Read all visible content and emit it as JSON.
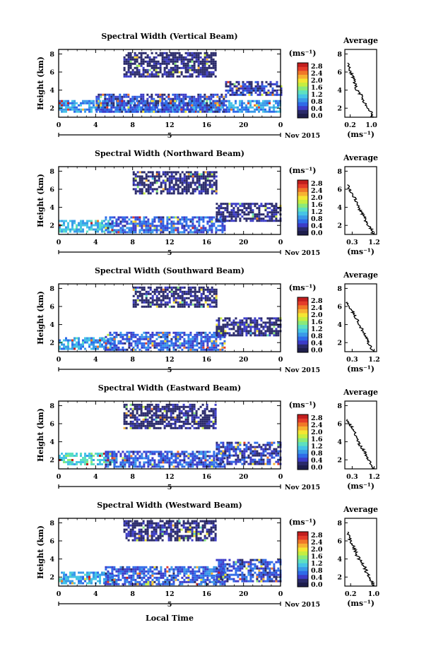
{
  "figure": {
    "common": {
      "ylabel": "Height (km)",
      "y_ticks": [
        "2",
        "4",
        "6",
        "8"
      ],
      "x_ticks": [
        "0",
        "4",
        "8",
        "12",
        "16",
        "20",
        "0"
      ],
      "date_tick": "5",
      "month_label": "Nov 2015",
      "xlabel": "Local Time",
      "colorbar_unit": "(ms⁻¹)",
      "colorbar_ticks": [
        "2.8",
        "2.4",
        "2.0",
        "1.6",
        "1.2",
        "0.8",
        "0.4",
        "0.0"
      ],
      "avg_title": "Average",
      "avg_unit": "(ms⁻¹)",
      "avg_y_ticks": [
        "2",
        "4",
        "6",
        "8"
      ]
    },
    "colors": {
      "colormap": [
        "#2a2a6a",
        "#3c3cc8",
        "#2e6ae8",
        "#3a9ae8",
        "#46c4e6",
        "#5ee0c0",
        "#8aea7a",
        "#c6ee40",
        "#f4e632",
        "#f6b232",
        "#f07828",
        "#e43c2a",
        "#c21e1e"
      ],
      "noise": "#1e1e4c"
    }
  },
  "chart_data": [
    {
      "type": "heatmap",
      "title": "Spectral Width (Vertical Beam)",
      "x_unit": "hours local time (5 Nov 2015)",
      "y_unit": "km",
      "xlim": [
        0,
        24
      ],
      "ylim": [
        1,
        8.5
      ],
      "colorbar": {
        "ticks": [
          0.0,
          0.4,
          0.8,
          1.2,
          1.6,
          2.0,
          2.4,
          2.8
        ],
        "unit": "ms-1"
      },
      "echo_regions": [
        {
          "x": [
            0,
            24
          ],
          "y": [
            1.5,
            2.9
          ],
          "mean_width": 0.8
        },
        {
          "x": [
            4,
            18
          ],
          "y": [
            1.5,
            3.6
          ],
          "mean_width": 0.4
        },
        {
          "x": [
            7,
            17
          ],
          "y": [
            5.5,
            8.2
          ],
          "mean_width": 0.05
        },
        {
          "x": [
            18,
            24
          ],
          "y": [
            3.5,
            5
          ],
          "mean_width": 0.3
        }
      ],
      "average_profile": {
        "title": "Average",
        "xlim": [
          0.0,
          1.2
        ],
        "x_ticks": [
          0.2,
          1.0
        ],
        "x_tick_labels": [
          "0.2",
          "1.0"
        ],
        "height": [
          1,
          1.5,
          2,
          2.5,
          3,
          3.5,
          4,
          4.5,
          5,
          5.5,
          6,
          6.5,
          7
        ],
        "width": [
          1.05,
          1.0,
          0.85,
          0.75,
          0.7,
          0.6,
          0.45,
          0.4,
          0.35,
          0.3,
          0.2,
          0.15,
          0.1
        ]
      }
    },
    {
      "type": "heatmap",
      "title": "Spectral Width (Northward Beam)",
      "x_unit": "hours local time (5 Nov 2015)",
      "y_unit": "km",
      "xlim": [
        0,
        24
      ],
      "ylim": [
        1,
        8.5
      ],
      "colorbar": {
        "ticks": [
          0.0,
          0.4,
          0.8,
          1.2,
          1.6,
          2.0,
          2.4,
          2.8
        ],
        "unit": "ms-1"
      },
      "echo_regions": [
        {
          "x": [
            0,
            6
          ],
          "y": [
            1.2,
            2.6
          ],
          "mean_width": 1.0
        },
        {
          "x": [
            5,
            18
          ],
          "y": [
            1.2,
            3.0
          ],
          "mean_width": 0.5
        },
        {
          "x": [
            8,
            17
          ],
          "y": [
            5.5,
            8.0
          ],
          "mean_width": 0.05
        },
        {
          "x": [
            17,
            24
          ],
          "y": [
            2.5,
            4.5
          ],
          "mean_width": 0.1
        }
      ],
      "average_profile": {
        "title": "Average",
        "xlim": [
          0.0,
          1.3
        ],
        "x_ticks": [
          0.3,
          1.2
        ],
        "x_tick_labels": [
          "0.3",
          "1.2"
        ],
        "height": [
          1,
          1.5,
          2,
          2.5,
          3,
          3.5,
          4,
          4.5,
          5,
          5.5,
          6,
          6.5
        ],
        "width": [
          1.15,
          1.1,
          0.95,
          0.85,
          0.8,
          0.65,
          0.55,
          0.5,
          0.4,
          0.3,
          0.2,
          0.1
        ]
      }
    },
    {
      "type": "heatmap",
      "title": "Spectral Width (Southward Beam)",
      "x_unit": "hours local time (5 Nov 2015)",
      "y_unit": "km",
      "xlim": [
        0,
        24
      ],
      "ylim": [
        1,
        8.5
      ],
      "colorbar": {
        "ticks": [
          0.0,
          0.4,
          0.8,
          1.2,
          1.6,
          2.0,
          2.4,
          2.8
        ],
        "unit": "ms-1"
      },
      "echo_regions": [
        {
          "x": [
            0,
            6
          ],
          "y": [
            1.2,
            2.6
          ],
          "mean_width": 0.9
        },
        {
          "x": [
            5,
            18
          ],
          "y": [
            1.2,
            3.2
          ],
          "mean_width": 0.5
        },
        {
          "x": [
            8,
            17
          ],
          "y": [
            6.0,
            8.2
          ],
          "mean_width": 0.05
        },
        {
          "x": [
            17,
            24
          ],
          "y": [
            2.8,
            4.8
          ],
          "mean_width": 0.1
        }
      ],
      "average_profile": {
        "title": "Average",
        "xlim": [
          0.0,
          1.3
        ],
        "x_ticks": [
          0.3,
          1.2
        ],
        "x_tick_labels": [
          "0.3",
          "1.2"
        ],
        "height": [
          1,
          1.5,
          2,
          2.5,
          3,
          3.5,
          4,
          4.5,
          5,
          5.5,
          6,
          6.5
        ],
        "width": [
          1.15,
          1.05,
          0.95,
          0.9,
          0.8,
          0.7,
          0.55,
          0.5,
          0.4,
          0.3,
          0.2,
          0.1
        ]
      }
    },
    {
      "type": "heatmap",
      "title": "Spectral Width (Eastward Beam)",
      "x_unit": "hours local time (5 Nov 2015)",
      "y_unit": "km",
      "xlim": [
        0,
        24
      ],
      "ylim": [
        1,
        8.5
      ],
      "colorbar": {
        "ticks": [
          0.0,
          0.4,
          0.8,
          1.2,
          1.6,
          2.0,
          2.4,
          2.8
        ],
        "unit": "ms-1"
      },
      "echo_regions": [
        {
          "x": [
            0,
            6
          ],
          "y": [
            1.5,
            2.8
          ],
          "mean_width": 1.2
        },
        {
          "x": [
            5,
            18
          ],
          "y": [
            1.2,
            3.0
          ],
          "mean_width": 0.5
        },
        {
          "x": [
            7,
            17
          ],
          "y": [
            5.5,
            8.2
          ],
          "mean_width": 0.05
        },
        {
          "x": [
            17,
            24
          ],
          "y": [
            1.5,
            4.0
          ],
          "mean_width": 0.3
        }
      ],
      "average_profile": {
        "title": "Average",
        "xlim": [
          0.0,
          1.3
        ],
        "x_ticks": [
          0.3,
          1.2
        ],
        "x_tick_labels": [
          "0.3",
          "1.2"
        ],
        "height": [
          1,
          1.5,
          2,
          2.5,
          3,
          3.5,
          4,
          4.5,
          5,
          5.5,
          6,
          6.5
        ],
        "width": [
          1.15,
          1.1,
          0.95,
          0.85,
          0.8,
          0.65,
          0.55,
          0.5,
          0.4,
          0.3,
          0.2,
          0.1
        ]
      }
    },
    {
      "type": "heatmap",
      "title": "Spectral Width (Westward Beam)",
      "x_unit": "hours local time (5 Nov 2015)",
      "y_unit": "km",
      "xlim": [
        0,
        24
      ],
      "ylim": [
        1,
        8.5
      ],
      "colorbar": {
        "ticks": [
          0.0,
          0.4,
          0.8,
          1.2,
          1.6,
          2.0,
          2.4,
          2.8
        ],
        "unit": "ms-1"
      },
      "echo_regions": [
        {
          "x": [
            0,
            6
          ],
          "y": [
            1.2,
            2.6
          ],
          "mean_width": 0.9
        },
        {
          "x": [
            5,
            18
          ],
          "y": [
            1.2,
            3.2
          ],
          "mean_width": 0.5
        },
        {
          "x": [
            7,
            17
          ],
          "y": [
            6.0,
            8.3
          ],
          "mean_width": 0.05
        },
        {
          "x": [
            17,
            24
          ],
          "y": [
            1.5,
            4.0
          ],
          "mean_width": 0.4
        }
      ],
      "average_profile": {
        "title": "Average",
        "xlim": [
          0.0,
          1.1
        ],
        "x_ticks": [
          0.2,
          1.0
        ],
        "x_tick_labels": [
          "0.2",
          "1.0"
        ],
        "height": [
          1,
          1.5,
          2,
          2.5,
          3,
          3.5,
          4,
          4.5,
          5,
          5.5,
          6,
          6.5,
          7
        ],
        "width": [
          1.0,
          0.95,
          0.85,
          0.75,
          0.7,
          0.6,
          0.5,
          0.4,
          0.35,
          0.3,
          0.2,
          0.15,
          0.1
        ]
      }
    }
  ]
}
